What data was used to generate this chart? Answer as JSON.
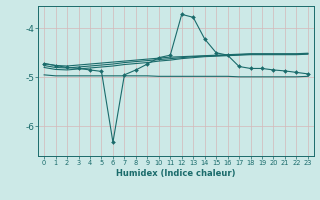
{
  "xlabel": "Humidex (Indice chaleur)",
  "bg_color": "#cce9e7",
  "grid_color": "#d4b8b8",
  "line_color": "#1a6b6b",
  "x_min": -0.5,
  "x_max": 23.5,
  "y_min": -6.6,
  "y_max": -3.55,
  "yticks": [
    -6,
    -5,
    -4
  ],
  "xticks": [
    0,
    1,
    2,
    3,
    4,
    5,
    6,
    7,
    8,
    9,
    10,
    11,
    12,
    13,
    14,
    15,
    16,
    17,
    18,
    19,
    20,
    21,
    22,
    23
  ],
  "marker_y": [
    -4.72,
    -4.76,
    -4.8,
    -4.82,
    -4.85,
    -4.88,
    -6.32,
    -4.95,
    -4.85,
    -4.73,
    -4.6,
    -4.55,
    -3.72,
    -3.78,
    -4.22,
    -4.5,
    -4.55,
    -4.78,
    -4.82,
    -4.82,
    -4.85,
    -4.87,
    -4.9,
    -4.93
  ],
  "upper_y": [
    -4.72,
    -4.76,
    -4.77,
    -4.75,
    -4.73,
    -4.71,
    -4.69,
    -4.67,
    -4.65,
    -4.63,
    -4.61,
    -4.59,
    -4.58,
    -4.57,
    -4.56,
    -4.55,
    -4.54,
    -4.53,
    -4.52,
    -4.52,
    -4.52,
    -4.52,
    -4.52,
    -4.51
  ],
  "line2_y": [
    -4.76,
    -4.8,
    -4.81,
    -4.79,
    -4.77,
    -4.75,
    -4.73,
    -4.7,
    -4.68,
    -4.66,
    -4.64,
    -4.62,
    -4.6,
    -4.58,
    -4.57,
    -4.56,
    -4.55,
    -4.54,
    -4.53,
    -4.53,
    -4.53,
    -4.53,
    -4.53,
    -4.52
  ],
  "line3_y": [
    -4.8,
    -4.84,
    -4.85,
    -4.83,
    -4.81,
    -4.79,
    -4.77,
    -4.74,
    -4.72,
    -4.7,
    -4.67,
    -4.65,
    -4.62,
    -4.6,
    -4.58,
    -4.57,
    -4.56,
    -4.55,
    -4.54,
    -4.54,
    -4.54,
    -4.54,
    -4.54,
    -4.53
  ],
  "flat_y": [
    -4.95,
    -4.97,
    -4.97,
    -4.97,
    -4.97,
    -4.97,
    -4.97,
    -4.97,
    -4.97,
    -4.97,
    -4.98,
    -4.98,
    -4.98,
    -4.98,
    -4.98,
    -4.98,
    -4.98,
    -4.99,
    -4.99,
    -4.99,
    -4.99,
    -4.99,
    -4.99,
    -4.98
  ]
}
